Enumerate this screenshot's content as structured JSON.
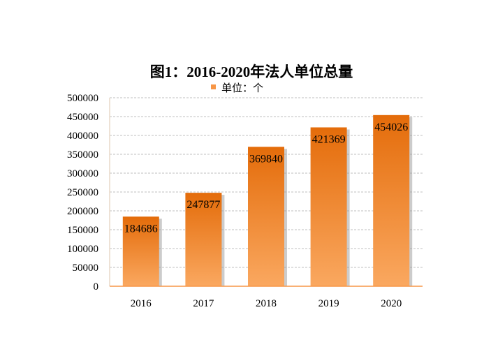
{
  "chart_data": {
    "type": "bar",
    "title": "图1：2016-2020年法人单位总量",
    "legend": {
      "label": "单位：个",
      "placement": "top"
    },
    "categories": [
      "2016",
      "2017",
      "2018",
      "2019",
      "2020"
    ],
    "values": [
      184686,
      247877,
      369840,
      421369,
      454026
    ],
    "yticks": [
      "0",
      "50000",
      "100000",
      "150000",
      "200000",
      "250000",
      "300000",
      "350000",
      "400000",
      "450000",
      "500000"
    ],
    "ylim": [
      0,
      500000
    ],
    "grid": true,
    "colors": {
      "bar_top": "#E46C0A",
      "bar_bottom": "#FAA860",
      "axis": "#F79646",
      "grid": "#BFBFBF"
    }
  }
}
